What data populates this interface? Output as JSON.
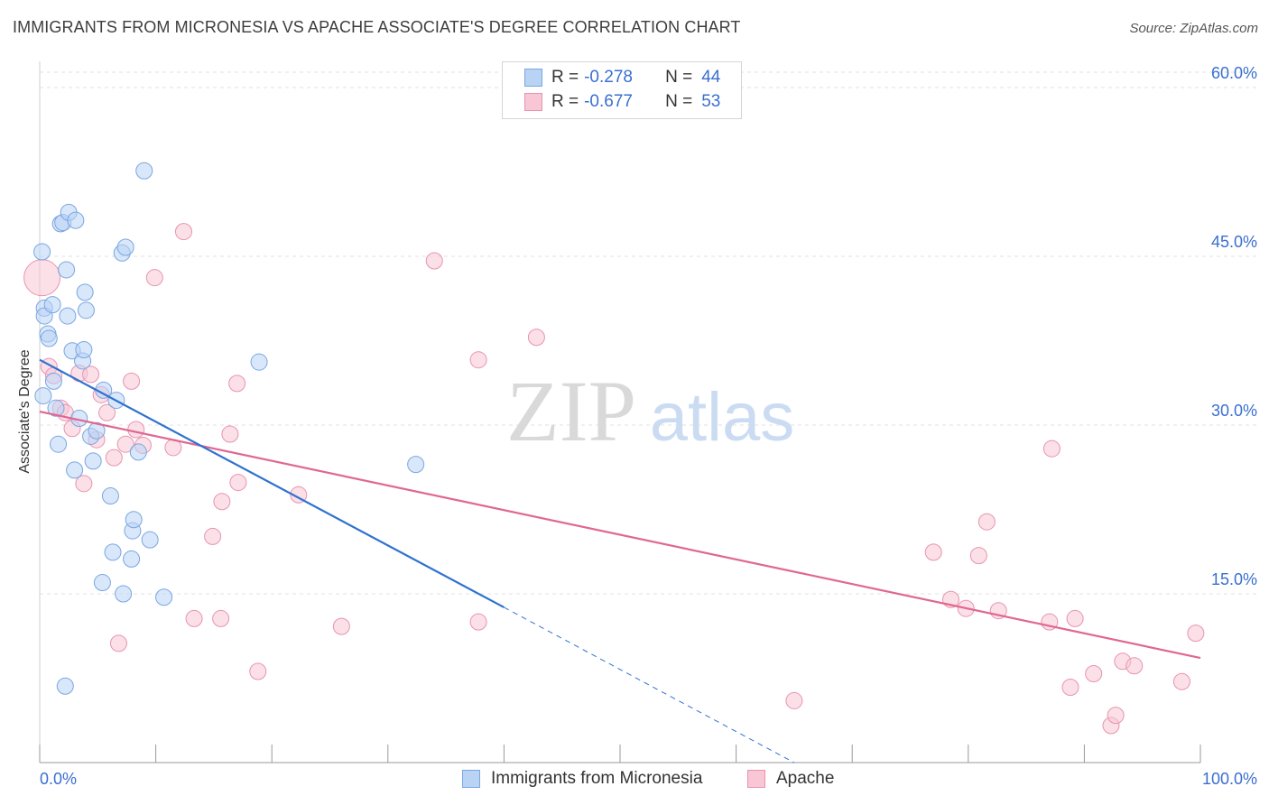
{
  "title": "IMMIGRANTS FROM MICRONESIA VS APACHE ASSOCIATE'S DEGREE CORRELATION CHART",
  "source": "Source: ZipAtlas.com",
  "watermark": {
    "part1": "ZIP",
    "part2": "atlas"
  },
  "legend_top": [
    {
      "r_label": "R =",
      "r_value": "-0.278",
      "n_label": "N =",
      "n_value": "44"
    },
    {
      "r_label": "R =",
      "r_value": "-0.677",
      "n_label": "N =",
      "n_value": "53"
    }
  ],
  "legend_bottom": [
    "Immigrants from Micronesia",
    "Apache"
  ],
  "colors": {
    "blue_fill": "#b9d3f5",
    "blue_stroke": "#7aa6e0",
    "blue_line": "#2f72d0",
    "pink_fill": "#f8c6d5",
    "pink_stroke": "#e893b0",
    "pink_line": "#e06791",
    "tick_label": "#3a6fd0",
    "grid": "#e2e2e2"
  },
  "chart_data": {
    "type": "scatter",
    "title": "IMMIGRANTS FROM MICRONESIA VS APACHE ASSOCIATE'S DEGREE CORRELATION CHART",
    "xlabel": "",
    "ylabel": "Associate's Degree",
    "xlim": [
      0,
      100
    ],
    "ylim": [
      0,
      0.6
    ],
    "x_tick_labels": [
      "0.0%",
      "100.0%"
    ],
    "y_ticks": [
      0.15,
      0.3,
      0.45,
      0.6
    ],
    "y_tick_labels": [
      "15.0%",
      "30.0%",
      "45.0%",
      "60.0%"
    ],
    "grid": "horizontal dashed",
    "legend_position": "top-center and bottom",
    "series": [
      {
        "name": "Immigrants from Micronesia",
        "r": -0.278,
        "n": 44,
        "points": [
          [
            0.2,
            0.454
          ],
          [
            0.4,
            0.404
          ],
          [
            0.4,
            0.397
          ],
          [
            0.7,
            0.381
          ],
          [
            0.8,
            0.377
          ],
          [
            1.1,
            0.407
          ],
          [
            1.2,
            0.339
          ],
          [
            1.4,
            0.315
          ],
          [
            1.6,
            0.283
          ],
          [
            1.8,
            0.479
          ],
          [
            2.0,
            0.48
          ],
          [
            2.2,
            0.068
          ],
          [
            2.3,
            0.438
          ],
          [
            2.4,
            0.397
          ],
          [
            2.5,
            0.489
          ],
          [
            2.8,
            0.366
          ],
          [
            3.0,
            0.26
          ],
          [
            3.1,
            0.482
          ],
          [
            3.4,
            0.306
          ],
          [
            3.7,
            0.357
          ],
          [
            3.8,
            0.367
          ],
          [
            3.9,
            0.418
          ],
          [
            4.0,
            0.402
          ],
          [
            4.4,
            0.29
          ],
          [
            4.6,
            0.268
          ],
          [
            4.9,
            0.295
          ],
          [
            5.4,
            0.16
          ],
          [
            5.5,
            0.331
          ],
          [
            6.1,
            0.237
          ],
          [
            6.3,
            0.187
          ],
          [
            6.6,
            0.322
          ],
          [
            7.1,
            0.453
          ],
          [
            7.2,
            0.15
          ],
          [
            7.4,
            0.458
          ],
          [
            7.9,
            0.181
          ],
          [
            8.0,
            0.206
          ],
          [
            8.1,
            0.216
          ],
          [
            8.5,
            0.276
          ],
          [
            9.0,
            0.526
          ],
          [
            9.5,
            0.198
          ],
          [
            10.7,
            0.147
          ],
          [
            18.9,
            0.356
          ],
          [
            32.4,
            0.265
          ],
          [
            0.3,
            0.326
          ]
        ],
        "trendline": {
          "x": [
            0,
            40
          ],
          "y": [
            0.358,
            0.138
          ]
        },
        "trendline_dashed": {
          "x": [
            40,
            65
          ],
          "y": [
            0.138,
            0.0
          ]
        }
      },
      {
        "name": "Apache",
        "r": -0.677,
        "n": 53,
        "points": [
          [
            0.2,
            0.431
          ],
          [
            0.8,
            0.352
          ],
          [
            1.2,
            0.344
          ],
          [
            1.8,
            0.315
          ],
          [
            2.2,
            0.311
          ],
          [
            2.8,
            0.297
          ],
          [
            3.4,
            0.346
          ],
          [
            3.8,
            0.248
          ],
          [
            4.4,
            0.345
          ],
          [
            4.9,
            0.287
          ],
          [
            5.3,
            0.327
          ],
          [
            5.8,
            0.311
          ],
          [
            6.4,
            0.271
          ],
          [
            6.8,
            0.106
          ],
          [
            7.4,
            0.283
          ],
          [
            7.9,
            0.339
          ],
          [
            8.3,
            0.296
          ],
          [
            8.9,
            0.282
          ],
          [
            9.9,
            0.431
          ],
          [
            11.5,
            0.28
          ],
          [
            12.4,
            0.472
          ],
          [
            13.3,
            0.128
          ],
          [
            14.9,
            0.201
          ],
          [
            15.7,
            0.232
          ],
          [
            15.6,
            0.128
          ],
          [
            16.4,
            0.292
          ],
          [
            17.0,
            0.337
          ],
          [
            17.1,
            0.249
          ],
          [
            18.8,
            0.081
          ],
          [
            22.3,
            0.238
          ],
          [
            26.0,
            0.121
          ],
          [
            34.0,
            0.446
          ],
          [
            37.8,
            0.358
          ],
          [
            37.8,
            0.125
          ],
          [
            42.8,
            0.378
          ],
          [
            65.0,
            0.055
          ],
          [
            77.0,
            0.187
          ],
          [
            78.5,
            0.145
          ],
          [
            79.8,
            0.137
          ],
          [
            80.9,
            0.184
          ],
          [
            81.6,
            0.214
          ],
          [
            82.6,
            0.135
          ],
          [
            87.2,
            0.279
          ],
          [
            87.0,
            0.125
          ],
          [
            88.8,
            0.067
          ],
          [
            89.2,
            0.128
          ],
          [
            90.8,
            0.079
          ],
          [
            92.3,
            0.033
          ],
          [
            92.7,
            0.042
          ],
          [
            93.3,
            0.09
          ],
          [
            94.3,
            0.086
          ],
          [
            98.4,
            0.072
          ],
          [
            99.6,
            0.115
          ]
        ],
        "trendline": {
          "x": [
            0,
            100
          ],
          "y": [
            0.312,
            0.093
          ]
        }
      }
    ]
  }
}
